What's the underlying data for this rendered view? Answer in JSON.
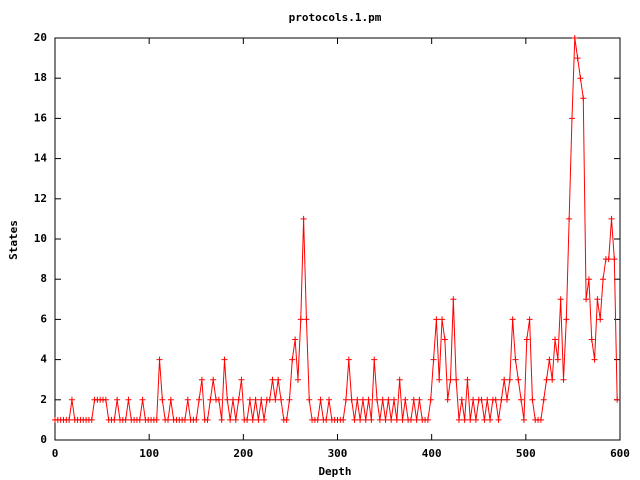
{
  "chart_data": {
    "type": "line",
    "title": "protocols.1.pm",
    "x_label": "Depth",
    "y_label": "States",
    "x": [
      0,
      3,
      6,
      9,
      12,
      15,
      18,
      21,
      24,
      27,
      30,
      33,
      36,
      39,
      42,
      45,
      48,
      51,
      54,
      57,
      60,
      63,
      66,
      69,
      72,
      75,
      78,
      81,
      84,
      87,
      90,
      93,
      96,
      99,
      102,
      105,
      108,
      111,
      114,
      117,
      120,
      123,
      126,
      129,
      132,
      135,
      138,
      141,
      144,
      147,
      150,
      153,
      156,
      159,
      162,
      165,
      168,
      171,
      174,
      177,
      180,
      183,
      186,
      189,
      192,
      195,
      198,
      201,
      204,
      207,
      210,
      213,
      216,
      219,
      222,
      225,
      228,
      231,
      234,
      237,
      240,
      243,
      246,
      249,
      252,
      255,
      258,
      261,
      264,
      267,
      270,
      273,
      276,
      279,
      282,
      285,
      288,
      291,
      294,
      297,
      300,
      303,
      306,
      309,
      312,
      315,
      318,
      321,
      324,
      327,
      330,
      333,
      336,
      339,
      342,
      345,
      348,
      351,
      354,
      357,
      360,
      363,
      366,
      369,
      372,
      375,
      378,
      381,
      384,
      387,
      390,
      393,
      396,
      399,
      402,
      405,
      408,
      411,
      414,
      417,
      420,
      423,
      426,
      429,
      432,
      435,
      438,
      441,
      444,
      447,
      450,
      453,
      456,
      459,
      462,
      465,
      468,
      471,
      474,
      477,
      480,
      483,
      486,
      489,
      492,
      495,
      498,
      501,
      504,
      507,
      510,
      513,
      516,
      519,
      522,
      525,
      528,
      531,
      534,
      537,
      540,
      543,
      546,
      549,
      552,
      555,
      558,
      561,
      564,
      567,
      570,
      573,
      576,
      579,
      582,
      585,
      588,
      591,
      594,
      597
    ],
    "series": [
      {
        "name": "protocols.1.pm",
        "color": "#ff0000",
        "values": [
          1,
          1,
          1,
          1,
          1,
          1,
          2,
          1,
          1,
          1,
          1,
          1,
          1,
          1,
          2,
          2,
          2,
          2,
          2,
          1,
          1,
          1,
          2,
          1,
          1,
          1,
          2,
          1,
          1,
          1,
          1,
          2,
          1,
          1,
          1,
          1,
          1,
          4,
          2,
          1,
          1,
          2,
          1,
          1,
          1,
          1,
          1,
          2,
          1,
          1,
          1,
          2,
          3,
          1,
          1,
          2,
          3,
          2,
          2,
          1,
          4,
          2,
          1,
          2,
          1,
          2,
          3,
          1,
          1,
          2,
          1,
          2,
          1,
          2,
          1,
          2,
          2,
          3,
          2,
          3,
          2,
          1,
          1,
          2,
          4,
          5,
          3,
          6,
          11,
          6,
          2,
          1,
          1,
          1,
          2,
          1,
          1,
          2,
          1,
          1,
          1,
          1,
          1,
          2,
          4,
          2,
          1,
          2,
          1,
          2,
          1,
          2,
          1,
          4,
          2,
          1,
          2,
          1,
          2,
          1,
          2,
          1,
          3,
          1,
          2,
          1,
          1,
          2,
          1,
          2,
          1,
          1,
          1,
          2,
          4,
          6,
          3,
          6,
          5,
          2,
          3,
          7,
          3,
          1,
          2,
          1,
          3,
          1,
          2,
          1,
          2,
          2,
          1,
          2,
          1,
          2,
          2,
          1,
          2,
          3,
          2,
          3,
          6,
          4,
          3,
          2,
          1,
          5,
          6,
          2,
          1,
          1,
          1,
          2,
          3,
          4,
          3,
          5,
          4,
          7,
          3,
          6,
          11,
          16,
          20,
          19,
          18,
          17,
          7,
          8,
          5,
          4,
          7,
          6,
          8,
          9,
          9,
          11,
          9,
          2
        ]
      }
    ],
    "xlim": [
      0,
      600
    ],
    "xticks": [
      0,
      100,
      200,
      300,
      400,
      500,
      600
    ],
    "ylim": [
      0,
      20
    ],
    "yticks": [
      0,
      2,
      4,
      6,
      8,
      10,
      12,
      14,
      16,
      18,
      20
    ],
    "grid": false
  }
}
